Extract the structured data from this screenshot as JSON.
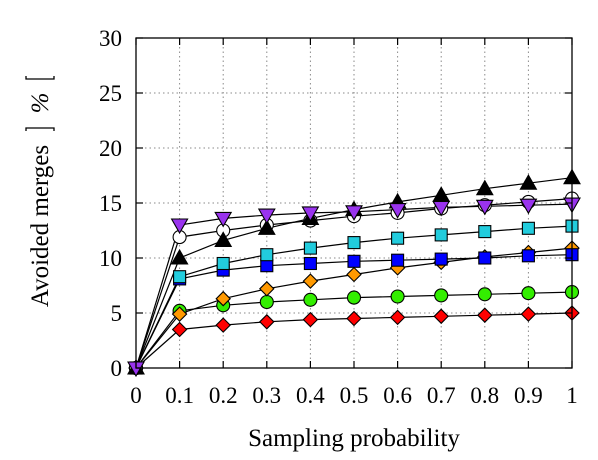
{
  "chart_data": {
    "type": "line",
    "title": "",
    "xlabel": "Sampling probability",
    "ylabel_main": "Avoided merges",
    "ylabel_unit": "%",
    "xlim": [
      0,
      1
    ],
    "ylim": [
      0,
      30
    ],
    "xticks": [
      "0",
      "0.1",
      "0.2",
      "0.3",
      "0.4",
      "0.5",
      "0.6",
      "0.7",
      "0.8",
      "0.9",
      "1"
    ],
    "yticks": [
      "0",
      "5",
      "10",
      "15",
      "20",
      "25",
      "30"
    ],
    "grid": true,
    "legend": "none",
    "x": [
      0,
      0.1,
      0.2,
      0.3,
      0.4,
      0.5,
      0.6,
      0.7,
      0.8,
      0.9,
      1.0
    ],
    "series": [
      {
        "marker": "diamond",
        "color": "#ff0000",
        "values": [
          0,
          3.5,
          3.9,
          4.2,
          4.4,
          4.5,
          4.6,
          4.7,
          4.8,
          4.9,
          5.0
        ]
      },
      {
        "marker": "circle",
        "color": "#33ee00",
        "values": [
          0,
          5.2,
          5.7,
          6.0,
          6.2,
          6.4,
          6.5,
          6.6,
          6.7,
          6.8,
          6.9
        ]
      },
      {
        "marker": "diamond",
        "color": "#ff9900",
        "values": [
          0,
          4.9,
          6.3,
          7.2,
          7.9,
          8.5,
          9.1,
          9.6,
          10.1,
          10.5,
          10.9
        ]
      },
      {
        "marker": "square",
        "color": "#0000ff",
        "values": [
          0,
          8.1,
          8.9,
          9.3,
          9.5,
          9.7,
          9.8,
          9.9,
          10.0,
          10.2,
          10.3
        ]
      },
      {
        "marker": "square",
        "color": "#22ccdd",
        "values": [
          0,
          8.3,
          9.5,
          10.3,
          10.9,
          11.4,
          11.8,
          12.1,
          12.4,
          12.7,
          12.9
        ]
      },
      {
        "marker": "circle",
        "color": "#ffffff",
        "values": [
          0,
          11.9,
          12.5,
          13.0,
          13.4,
          13.8,
          14.1,
          14.5,
          14.8,
          15.1,
          15.4
        ]
      },
      {
        "marker": "triangle-up",
        "color": "#000000",
        "values": [
          0,
          10.0,
          11.6,
          12.7,
          13.6,
          14.4,
          15.1,
          15.7,
          16.3,
          16.8,
          17.3
        ]
      },
      {
        "marker": "triangle-down",
        "color": "#9933ee",
        "values": [
          0,
          13.0,
          13.6,
          13.9,
          14.1,
          14.2,
          14.4,
          14.6,
          14.7,
          14.8,
          14.9
        ]
      }
    ]
  }
}
